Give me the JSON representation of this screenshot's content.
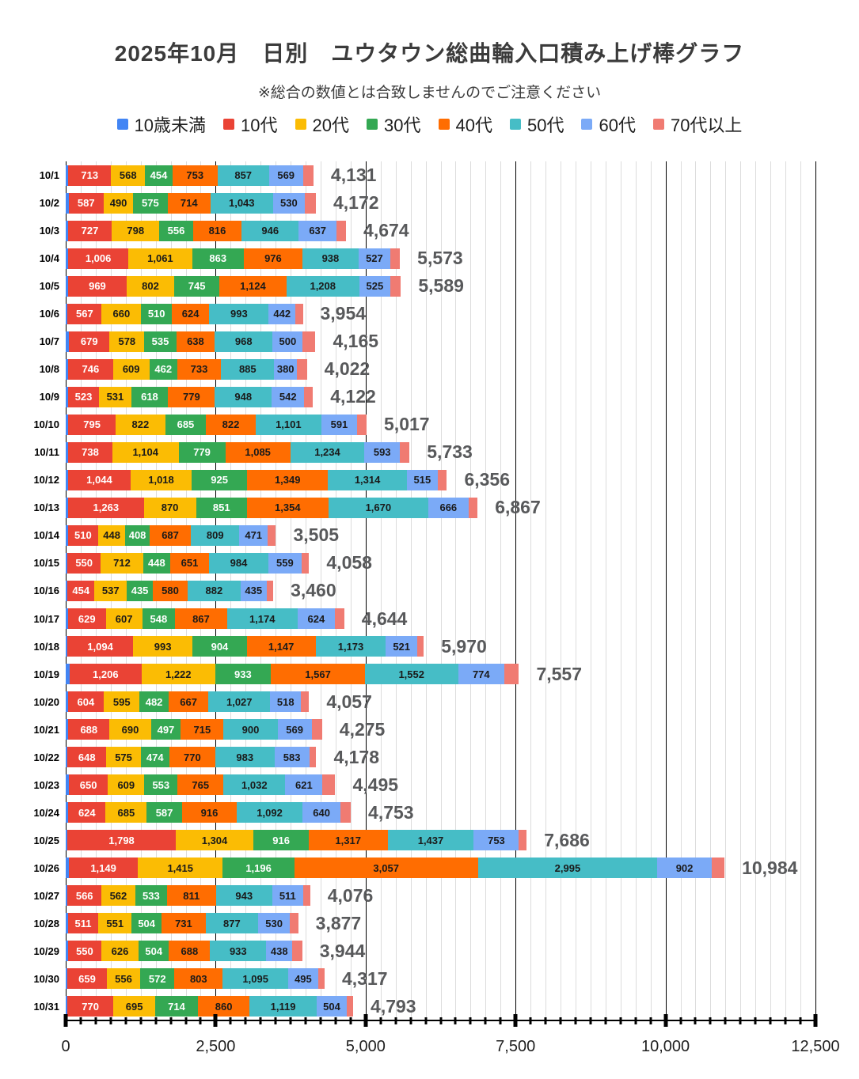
{
  "title": "2025年10月　日別　ユウタウン総曲輪入口積み上げ棒グラフ",
  "subtitle": "※総合の数値とは合致しませんのでご注意ください",
  "chart_data": {
    "type": "bar",
    "orientation": "horizontal",
    "stacked": true,
    "grid": true,
    "legend_position": "top",
    "title": "2025年10月　日別　ユウタウン総曲輪入口積み上げ棒グラフ",
    "xlabel": "",
    "ylabel": "",
    "xlim": [
      0,
      12500
    ],
    "x_axis": {
      "minor_tick_interval": 250,
      "major_tick_interval": 2500,
      "tick_labels": [
        "0",
        "2,500",
        "5,000",
        "7,500",
        "10,000",
        "12,500"
      ],
      "tick_values": [
        0,
        2500,
        5000,
        7500,
        10000,
        12500
      ]
    },
    "series": [
      {
        "name": "10歳未満",
        "color": "#4285F4",
        "label_color": "#ffffff",
        "show_labels": false
      },
      {
        "name": "10代",
        "color": "#EA4335",
        "label_color": "#ffffff",
        "show_labels": true
      },
      {
        "name": "20代",
        "color": "#FBBC04",
        "label_color": "#1a1a1a",
        "show_labels": true
      },
      {
        "name": "30代",
        "color": "#34A853",
        "label_color": "#ffffff",
        "show_labels": true
      },
      {
        "name": "40代",
        "color": "#FF6D01",
        "label_color": "#1a1a1a",
        "show_labels": true
      },
      {
        "name": "50代",
        "color": "#46BDC6",
        "label_color": "#1a1a1a",
        "show_labels": true
      },
      {
        "name": "60代",
        "color": "#7BAAF7",
        "label_color": "#1a1a1a",
        "show_labels": true
      },
      {
        "name": "70代以上",
        "color": "#F07B72",
        "label_color": "#ffffff",
        "show_labels": false
      }
    ],
    "unlabeled_segments_note": "10歳未満 and 70代以上 segment values are not labeled in the chart; they are estimated from bar pixel lengths so that each stacked bar ends at its printed total.",
    "categories": [
      "10/1",
      "10/2",
      "10/3",
      "10/4",
      "10/5",
      "10/6",
      "10/7",
      "10/8",
      "10/9",
      "10/10",
      "10/11",
      "10/12",
      "10/13",
      "10/14",
      "10/15",
      "10/16",
      "10/17",
      "10/18",
      "10/19",
      "10/20",
      "10/21",
      "10/22",
      "10/23",
      "10/24",
      "10/25",
      "10/26",
      "10/27",
      "10/28",
      "10/29",
      "10/30",
      "10/31"
    ],
    "rows": [
      {
        "date": "10/1",
        "values": [
          43,
          713,
          568,
          454,
          753,
          857,
          569,
          174
        ],
        "total": 4131
      },
      {
        "date": "10/2",
        "values": [
          47,
          587,
          490,
          575,
          714,
          1043,
          530,
          186
        ],
        "total": 4172
      },
      {
        "date": "10/3",
        "values": [
          39,
          727,
          798,
          556,
          816,
          946,
          637,
          155
        ],
        "total": 4674
      },
      {
        "date": "10/4",
        "values": [
          40,
          1006,
          1061,
          863,
          976,
          938,
          527,
          162
        ],
        "total": 5573
      },
      {
        "date": "10/5",
        "values": [
          43,
          969,
          802,
          745,
          1124,
          1208,
          525,
          173
        ],
        "total": 5589
      },
      {
        "date": "10/6",
        "values": [
          32,
          567,
          660,
          510,
          624,
          993,
          442,
          126
        ],
        "total": 3954
      },
      {
        "date": "10/7",
        "values": [
          53,
          679,
          578,
          535,
          638,
          968,
          500,
          214
        ],
        "total": 4165
      },
      {
        "date": "10/8",
        "values": [
          41,
          746,
          609,
          462,
          733,
          885,
          380,
          166
        ],
        "total": 4022
      },
      {
        "date": "10/9",
        "values": [
          36,
          523,
          531,
          618,
          779,
          948,
          542,
          145
        ],
        "total": 4122
      },
      {
        "date": "10/10",
        "values": [
          40,
          795,
          822,
          685,
          822,
          1101,
          591,
          161
        ],
        "total": 5017
      },
      {
        "date": "10/11",
        "values": [
          40,
          738,
          1104,
          779,
          1085,
          1234,
          593,
          160
        ],
        "total": 5733
      },
      {
        "date": "10/12",
        "values": [
          38,
          1044,
          1018,
          925,
          1349,
          1314,
          515,
          153
        ],
        "total": 6356
      },
      {
        "date": "10/13",
        "values": [
          39,
          1263,
          870,
          851,
          1354,
          1670,
          666,
          154
        ],
        "total": 6867
      },
      {
        "date": "10/14",
        "values": [
          34,
          510,
          448,
          408,
          687,
          809,
          471,
          138
        ],
        "total": 3505
      },
      {
        "date": "10/15",
        "values": [
          31,
          550,
          712,
          448,
          651,
          984,
          559,
          123
        ],
        "total": 4058
      },
      {
        "date": "10/16",
        "values": [
          27,
          454,
          537,
          435,
          580,
          882,
          435,
          110
        ],
        "total": 3460
      },
      {
        "date": "10/17",
        "values": [
          39,
          629,
          607,
          548,
          867,
          1174,
          624,
          156
        ],
        "total": 4644
      },
      {
        "date": "10/18",
        "values": [
          28,
          1094,
          993,
          904,
          1147,
          1173,
          521,
          110
        ],
        "total": 5970
      },
      {
        "date": "10/19",
        "values": [
          61,
          1206,
          1222,
          933,
          1567,
          1552,
          774,
          242
        ],
        "total": 7557
      },
      {
        "date": "10/20",
        "values": [
          33,
          604,
          595,
          482,
          667,
          1027,
          518,
          131
        ],
        "total": 4057
      },
      {
        "date": "10/21",
        "values": [
          43,
          688,
          690,
          497,
          715,
          900,
          569,
          173
        ],
        "total": 4275
      },
      {
        "date": "10/22",
        "values": [
          29,
          648,
          575,
          474,
          770,
          983,
          583,
          116
        ],
        "total": 4178
      },
      {
        "date": "10/23",
        "values": [
          53,
          650,
          609,
          553,
          765,
          1032,
          621,
          212
        ],
        "total": 4495
      },
      {
        "date": "10/24",
        "values": [
          42,
          624,
          685,
          587,
          916,
          1092,
          640,
          167
        ],
        "total": 4753
      },
      {
        "date": "10/25",
        "values": [
          32,
          1798,
          1304,
          916,
          1317,
          1437,
          753,
          129
        ],
        "total": 7686
      },
      {
        "date": "10/26",
        "values": [
          54,
          1149,
          1415,
          1196,
          3057,
          2995,
          902,
          216
        ],
        "total": 10984
      },
      {
        "date": "10/27",
        "values": [
          30,
          566,
          562,
          533,
          811,
          943,
          511,
          120
        ],
        "total": 4076
      },
      {
        "date": "10/28",
        "values": [
          35,
          511,
          551,
          504,
          731,
          877,
          530,
          138
        ],
        "total": 3877
      },
      {
        "date": "10/29",
        "values": [
          41,
          550,
          626,
          504,
          688,
          933,
          438,
          164
        ],
        "total": 3944
      },
      {
        "date": "10/30",
        "values": [
          27,
          659,
          556,
          572,
          803,
          1095,
          495,
          110
        ],
        "total": 4317
      },
      {
        "date": "10/31",
        "values": [
          26,
          770,
          695,
          714,
          860,
          1119,
          504,
          105
        ],
        "total": 4793
      }
    ]
  }
}
